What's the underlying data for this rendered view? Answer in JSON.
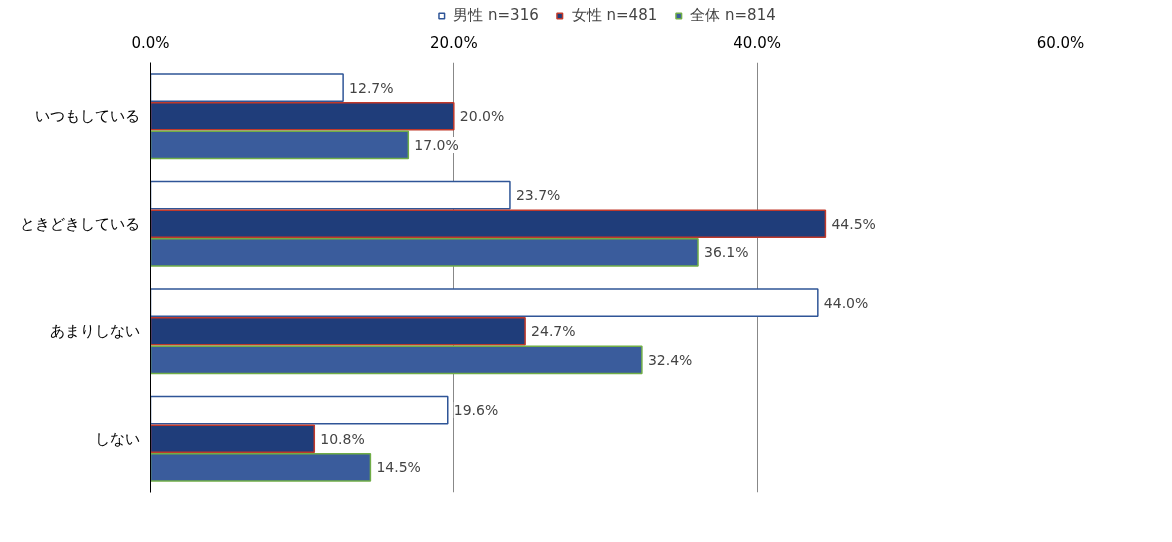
{
  "chart_data": {
    "type": "bar",
    "orientation": "horizontal",
    "categories": [
      "いつもしている",
      "ときどきしている",
      "あまりしない",
      "しない"
    ],
    "series": [
      {
        "name": "男性 n=316",
        "color": "#ffffff",
        "values": [
          12.7,
          23.7,
          44.0,
          19.6
        ],
        "value_labels": [
          "12.7%",
          "23.7%",
          "44.0%",
          "19.6%"
        ]
      },
      {
        "name": "女性 n=481",
        "color": "#1f3d7a",
        "values": [
          20.0,
          44.5,
          24.7,
          10.8
        ],
        "value_labels": [
          "20.0%",
          "44.5%",
          "24.7%",
          "10.8%"
        ]
      },
      {
        "name": "全体 n=814",
        "color": "#3a5c9c",
        "values": [
          17.0,
          36.1,
          32.4,
          14.5
        ],
        "value_labels": [
          "17.0%",
          "36.1%",
          "32.4%",
          "14.5%"
        ]
      }
    ],
    "xlim": [
      0,
      60
    ],
    "xticks": [
      {
        "value": 0,
        "label": "0.0%"
      },
      {
        "value": 20,
        "label": "20.0%"
      },
      {
        "value": 40,
        "label": "40.0%"
      },
      {
        "value": 60,
        "label": "60.0%"
      }
    ],
    "grid": "x",
    "legend": "top"
  }
}
